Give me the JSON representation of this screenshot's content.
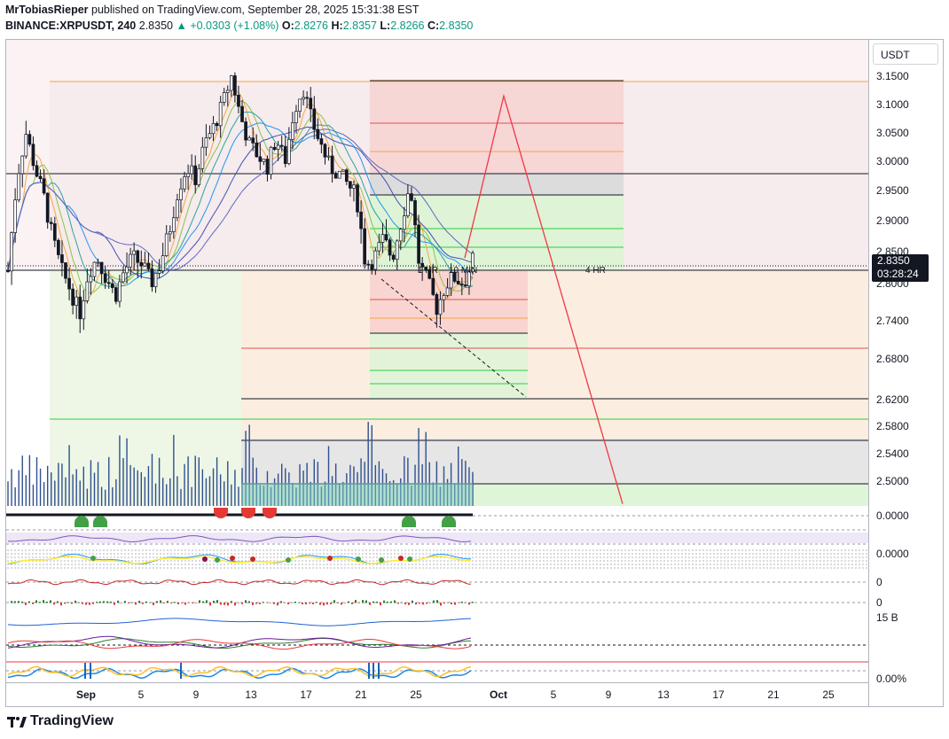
{
  "header": {
    "author": "MrTobiasRieper",
    "published_text": "published on TradingView.com, September 28, 2025 15:31:38 EST",
    "symbol": "BINANCE:XRPUSDT, 240",
    "last": "2.8350",
    "change": "▲ +0.0303 (+1.08%)",
    "o_label": "O:",
    "o": "2.8276",
    "h_label": "H:",
    "h": "2.8357",
    "l_label": "L:",
    "l": "2.8266",
    "c_label": "C:",
    "c": "2.8350"
  },
  "price_axis": {
    "unit": "USDT",
    "current_price": "2.8350",
    "countdown": "03:28:24"
  },
  "pane_labels": {
    "p1": "0.0000",
    "p3": "0.0000",
    "p4": "0",
    "p5": "0",
    "p6": "15 B",
    "p7": "0.00%"
  },
  "annotations": {
    "hr1": "1 HR",
    "min10": "10 MIN",
    "hr4": "4 HR"
  },
  "footer": {
    "brand": "TradingView"
  },
  "colors": {
    "up": "#089981",
    "down": "#f23645",
    "projection": "#f23645"
  },
  "chart_data": {
    "type": "candlestick",
    "y_axis": {
      "ylim": [
        2.47,
        3.19
      ],
      "ticks": [
        "3.1500",
        "3.1000",
        "3.0500",
        "3.0000",
        "2.9500",
        "2.9000",
        "2.8500",
        "2.8000",
        "2.7400",
        "2.6800",
        "2.6200",
        "2.5800",
        "2.5400",
        "2.5000"
      ]
    },
    "x_axis": {
      "ticks": [
        "Sep",
        "5",
        "9",
        "13",
        "17",
        "21",
        "25",
        "Oct",
        "5",
        "9",
        "13",
        "17",
        "21",
        "25"
      ],
      "bold_ticks": [
        "Sep",
        "Oct"
      ]
    },
    "price_path": [
      [
        0,
        2.82
      ],
      [
        1,
        2.97
      ],
      [
        2,
        3.05
      ],
      [
        3,
        2.99
      ],
      [
        4,
        2.94
      ],
      [
        5,
        2.87
      ],
      [
        6,
        2.82
      ],
      [
        7,
        2.79
      ],
      [
        8,
        2.75
      ],
      [
        9,
        2.82
      ],
      [
        10,
        2.84
      ],
      [
        11,
        2.81
      ],
      [
        12,
        2.78
      ],
      [
        13,
        2.82
      ],
      [
        14,
        2.84
      ],
      [
        15,
        2.83
      ],
      [
        16,
        2.8
      ],
      [
        17,
        2.83
      ],
      [
        18,
        2.88
      ],
      [
        19,
        2.95
      ],
      [
        20,
        2.99
      ],
      [
        21,
        2.97
      ],
      [
        22,
        3.03
      ],
      [
        23,
        3.06
      ],
      [
        24,
        3.1
      ],
      [
        25,
        3.15
      ],
      [
        26,
        3.08
      ],
      [
        27,
        3.03
      ],
      [
        28,
        3.01
      ],
      [
        29,
        2.99
      ],
      [
        30,
        3.04
      ],
      [
        31,
        3.0
      ],
      [
        32,
        3.09
      ],
      [
        33,
        3.13
      ],
      [
        34,
        3.07
      ],
      [
        35,
        3.03
      ],
      [
        36,
        2.99
      ],
      [
        37,
        2.98
      ],
      [
        38,
        2.96
      ],
      [
        39,
        2.94
      ],
      [
        40,
        2.83
      ],
      [
        41,
        2.84
      ],
      [
        42,
        2.87
      ],
      [
        43,
        2.84
      ],
      [
        44,
        2.9
      ],
      [
        45,
        2.96
      ],
      [
        46,
        2.83
      ],
      [
        47,
        2.8
      ],
      [
        48,
        2.76
      ],
      [
        49,
        2.8
      ],
      [
        50,
        2.81
      ],
      [
        51,
        2.8
      ],
      [
        52,
        2.835
      ]
    ],
    "levels": {
      "black": [
        3.141,
        2.978,
        2.812,
        2.5
      ],
      "orange": [
        3.141
      ],
      "green": [
        2.592
      ]
    },
    "projection_path": [
      [
        2.9,
        2.84
      ],
      [
        3.05,
        3.115
      ],
      [
        3.35,
        2.467
      ]
    ],
    "date_anchor": {
      "start_label": "Sep",
      "days_per_px": 0.0644
    }
  }
}
